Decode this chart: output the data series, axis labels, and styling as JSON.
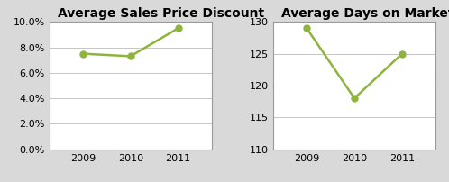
{
  "chart1_title": "Average Sales Price Discount",
  "chart2_title": "Average Days on Market",
  "years": [
    2009,
    2010,
    2011
  ],
  "discount_values": [
    0.075,
    0.073,
    0.095
  ],
  "days_values": [
    129,
    118,
    125
  ],
  "discount_ylim": [
    0.0,
    0.1
  ],
  "discount_yticks": [
    0.0,
    0.02,
    0.04,
    0.06,
    0.08,
    0.1
  ],
  "days_ylim": [
    110,
    130
  ],
  "days_yticks": [
    110,
    115,
    120,
    125,
    130
  ],
  "line_color": "#8db53c",
  "marker": "o",
  "marker_size": 5,
  "bg_color": "#d9d9d9",
  "plot_bg_color": "#ffffff",
  "title_fontsize": 10,
  "tick_fontsize": 8,
  "grid_color": "#bbbbbb",
  "border_color": "#999999"
}
